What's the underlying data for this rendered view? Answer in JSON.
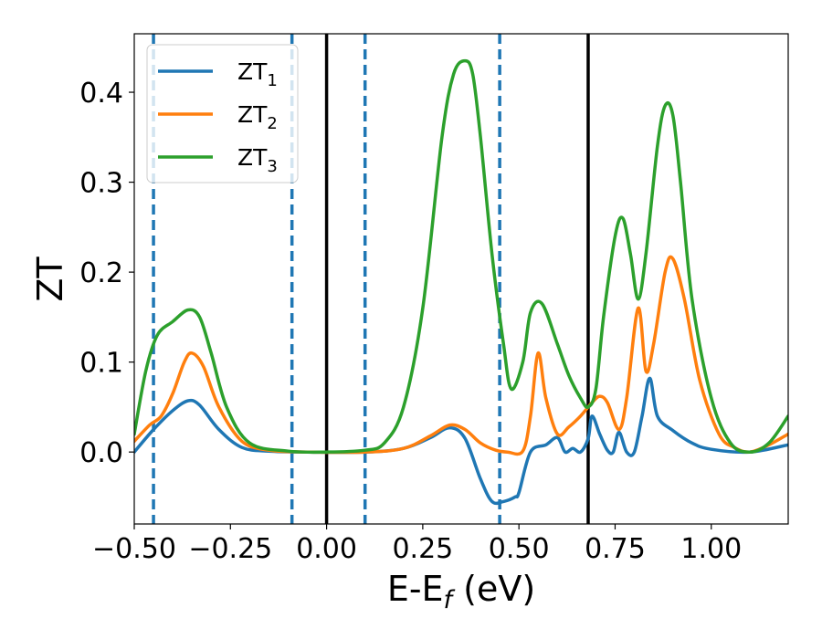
{
  "chart_data": {
    "type": "line",
    "title": "",
    "xlabel": "E-E_f (eV)",
    "ylabel": "ZT",
    "xlim": [
      -0.5,
      1.2
    ],
    "ylim": [
      -0.08,
      0.465
    ],
    "x_ticks": [
      -0.5,
      -0.25,
      0.0,
      0.25,
      0.5,
      0.75,
      1.0
    ],
    "x_tick_labels": [
      "−0.50",
      "−0.25",
      "0.00",
      "0.25",
      "0.50",
      "0.75",
      "1.00"
    ],
    "y_ticks": [
      0.0,
      0.1,
      0.2,
      0.3,
      0.4
    ],
    "y_tick_labels": [
      "0.0",
      "0.1",
      "0.2",
      "0.3",
      "0.4"
    ],
    "grid": false,
    "legend_position": "top-left",
    "vlines_dashed": {
      "x": [
        -0.45,
        -0.09,
        0.1,
        0.45
      ],
      "color": "#1f77b4"
    },
    "vlines_solid": {
      "x": [
        0.0,
        0.68
      ],
      "color": "#000000"
    },
    "series": [
      {
        "name": "ZT1",
        "label_main": "ZT",
        "label_sub": "1",
        "color": "#1f77b4",
        "points": [
          [
            -0.5,
            0.0
          ],
          [
            -0.45,
            0.025
          ],
          [
            -0.4,
            0.046
          ],
          [
            -0.36,
            0.057
          ],
          [
            -0.33,
            0.052
          ],
          [
            -0.28,
            0.025
          ],
          [
            -0.22,
            0.005
          ],
          [
            -0.15,
            0.001
          ],
          [
            -0.05,
            0.0
          ],
          [
            0.1,
            0.0
          ],
          [
            0.2,
            0.004
          ],
          [
            0.27,
            0.016
          ],
          [
            0.32,
            0.027
          ],
          [
            0.36,
            0.015
          ],
          [
            0.4,
            -0.03
          ],
          [
            0.43,
            -0.055
          ],
          [
            0.46,
            -0.055
          ],
          [
            0.49,
            -0.05
          ],
          [
            0.5,
            -0.045
          ],
          [
            0.53,
            0.0
          ],
          [
            0.57,
            0.008
          ],
          [
            0.6,
            0.016
          ],
          [
            0.62,
            0.0
          ],
          [
            0.64,
            0.004
          ],
          [
            0.66,
            0.0
          ],
          [
            0.68,
            0.015
          ],
          [
            0.69,
            0.04
          ],
          [
            0.71,
            0.02
          ],
          [
            0.73,
            0.002
          ],
          [
            0.745,
            0.0
          ],
          [
            0.76,
            0.022
          ],
          [
            0.78,
            0.0
          ],
          [
            0.8,
            0.0
          ],
          [
            0.82,
            0.04
          ],
          [
            0.84,
            0.082
          ],
          [
            0.86,
            0.04
          ],
          [
            0.9,
            0.024
          ],
          [
            0.95,
            0.01
          ],
          [
            1.0,
            0.003
          ],
          [
            1.1,
            0.0
          ],
          [
            1.2,
            0.008
          ]
        ]
      },
      {
        "name": "ZT2",
        "label_main": "ZT",
        "label_sub": "2",
        "color": "#ff7f0e",
        "points": [
          [
            -0.5,
            0.012
          ],
          [
            -0.46,
            0.03
          ],
          [
            -0.43,
            0.04
          ],
          [
            -0.4,
            0.065
          ],
          [
            -0.37,
            0.1
          ],
          [
            -0.35,
            0.11
          ],
          [
            -0.32,
            0.095
          ],
          [
            -0.28,
            0.05
          ],
          [
            -0.22,
            0.012
          ],
          [
            -0.15,
            0.002
          ],
          [
            -0.05,
            0.0
          ],
          [
            0.1,
            0.0
          ],
          [
            0.2,
            0.004
          ],
          [
            0.27,
            0.018
          ],
          [
            0.32,
            0.03
          ],
          [
            0.36,
            0.025
          ],
          [
            0.4,
            0.01
          ],
          [
            0.44,
            0.002
          ],
          [
            0.47,
            0.0
          ],
          [
            0.51,
            0.001
          ],
          [
            0.53,
            0.04
          ],
          [
            0.55,
            0.11
          ],
          [
            0.57,
            0.06
          ],
          [
            0.6,
            0.02
          ],
          [
            0.63,
            0.028
          ],
          [
            0.66,
            0.04
          ],
          [
            0.69,
            0.055
          ],
          [
            0.71,
            0.062
          ],
          [
            0.73,
            0.055
          ],
          [
            0.76,
            0.025
          ],
          [
            0.78,
            0.06
          ],
          [
            0.81,
            0.16
          ],
          [
            0.83,
            0.09
          ],
          [
            0.85,
            0.12
          ],
          [
            0.88,
            0.2
          ],
          [
            0.9,
            0.215
          ],
          [
            0.93,
            0.17
          ],
          [
            0.97,
            0.08
          ],
          [
            1.02,
            0.02
          ],
          [
            1.06,
            0.005
          ],
          [
            1.1,
            0.0
          ],
          [
            1.15,
            0.008
          ],
          [
            1.2,
            0.02
          ]
        ]
      },
      {
        "name": "ZT3",
        "label_main": "ZT",
        "label_sub": "3",
        "color": "#2ca02c",
        "points": [
          [
            -0.5,
            0.02
          ],
          [
            -0.47,
            0.09
          ],
          [
            -0.44,
            0.13
          ],
          [
            -0.4,
            0.145
          ],
          [
            -0.36,
            0.158
          ],
          [
            -0.33,
            0.15
          ],
          [
            -0.3,
            0.11
          ],
          [
            -0.26,
            0.05
          ],
          [
            -0.2,
            0.01
          ],
          [
            -0.1,
            0.001
          ],
          [
            0.0,
            0.0
          ],
          [
            0.1,
            0.002
          ],
          [
            0.15,
            0.01
          ],
          [
            0.2,
            0.05
          ],
          [
            0.25,
            0.16
          ],
          [
            0.3,
            0.35
          ],
          [
            0.33,
            0.42
          ],
          [
            0.36,
            0.435
          ],
          [
            0.38,
            0.42
          ],
          [
            0.4,
            0.35
          ],
          [
            0.43,
            0.22
          ],
          [
            0.46,
            0.12
          ],
          [
            0.48,
            0.07
          ],
          [
            0.51,
            0.1
          ],
          [
            0.53,
            0.155
          ],
          [
            0.56,
            0.165
          ],
          [
            0.6,
            0.12
          ],
          [
            0.63,
            0.085
          ],
          [
            0.66,
            0.06
          ],
          [
            0.68,
            0.05
          ],
          [
            0.7,
            0.07
          ],
          [
            0.72,
            0.15
          ],
          [
            0.75,
            0.24
          ],
          [
            0.77,
            0.26
          ],
          [
            0.79,
            0.22
          ],
          [
            0.81,
            0.17
          ],
          [
            0.83,
            0.22
          ],
          [
            0.86,
            0.34
          ],
          [
            0.88,
            0.385
          ],
          [
            0.9,
            0.375
          ],
          [
            0.92,
            0.3
          ],
          [
            0.95,
            0.17
          ],
          [
            1.0,
            0.06
          ],
          [
            1.05,
            0.01
          ],
          [
            1.1,
            0.0
          ],
          [
            1.15,
            0.01
          ],
          [
            1.2,
            0.04
          ]
        ]
      }
    ]
  }
}
